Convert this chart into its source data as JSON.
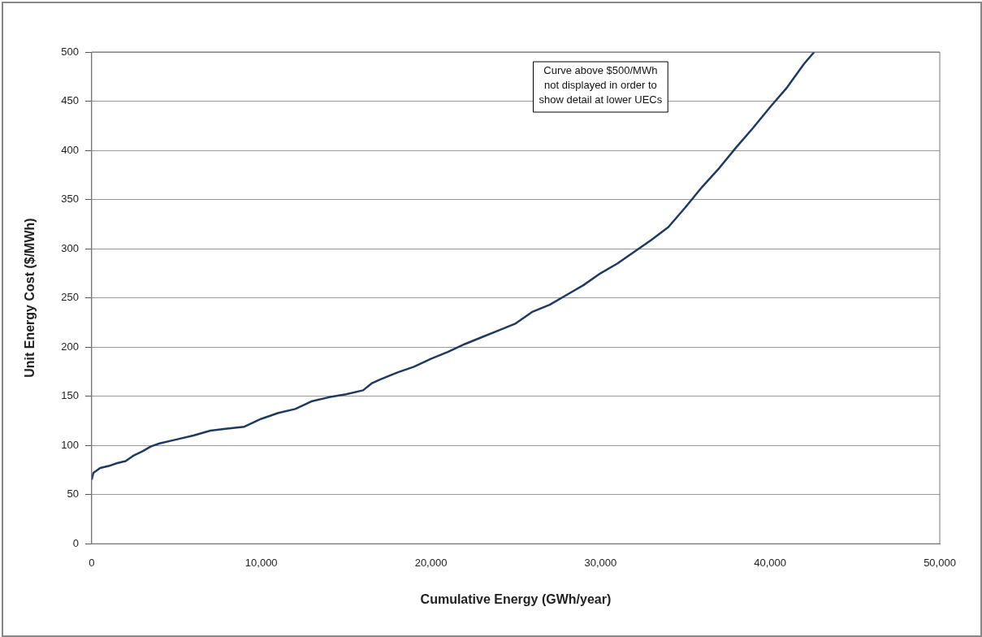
{
  "chart_data": {
    "type": "line",
    "xlabel": "Cumulative Energy (GWh/year)",
    "ylabel": "Unit Energy Cost ($/MWh)",
    "annotations": [
      "Curve above $500/MWh\nnot displayed in order to\nshow detail at lower UECs"
    ],
    "xlim": [
      0,
      50000
    ],
    "xticks": [
      {
        "value": 0,
        "label": "0"
      },
      {
        "value": 10000,
        "label": "10,000"
      },
      {
        "value": 20000,
        "label": "20,000"
      },
      {
        "value": 30000,
        "label": "30,000"
      },
      {
        "value": 40000,
        "label": "40,000"
      },
      {
        "value": 50000,
        "label": "50,000"
      }
    ],
    "ylim": [
      0,
      500
    ],
    "yticks": [
      0,
      50,
      100,
      150,
      200,
      250,
      300,
      350,
      400,
      450,
      500
    ],
    "grid": "y",
    "legend": false,
    "marker": "none",
    "line_style": "solid",
    "series": [
      {
        "color": "#1f3a5f",
        "x": [
          0,
          100,
          500,
          1000,
          1500,
          2000,
          2500,
          3000,
          3500,
          4000,
          5000,
          6000,
          7000,
          8000,
          9000,
          10000,
          11000,
          12000,
          13000,
          14000,
          15000,
          16000,
          16500,
          17000,
          18000,
          19000,
          20000,
          21000,
          22000,
          23000,
          24000,
          25000,
          26000,
          27000,
          28000,
          29000,
          30000,
          31000,
          32000,
          33000,
          34000,
          35000,
          36000,
          37000,
          38000,
          39000,
          40000,
          41000,
          42000,
          42600
        ],
        "values": [
          65,
          72,
          77,
          79,
          82,
          84,
          90,
          94,
          99,
          102,
          106,
          110,
          115,
          117,
          119,
          127,
          133,
          137,
          145,
          149,
          152,
          156,
          163,
          167,
          174,
          180,
          188,
          195,
          203,
          210,
          217,
          224,
          236,
          243,
          253,
          263,
          275,
          285,
          297,
          309,
          322,
          342,
          363,
          382,
          403,
          423,
          444,
          464,
          488,
          500
        ]
      }
    ]
  }
}
